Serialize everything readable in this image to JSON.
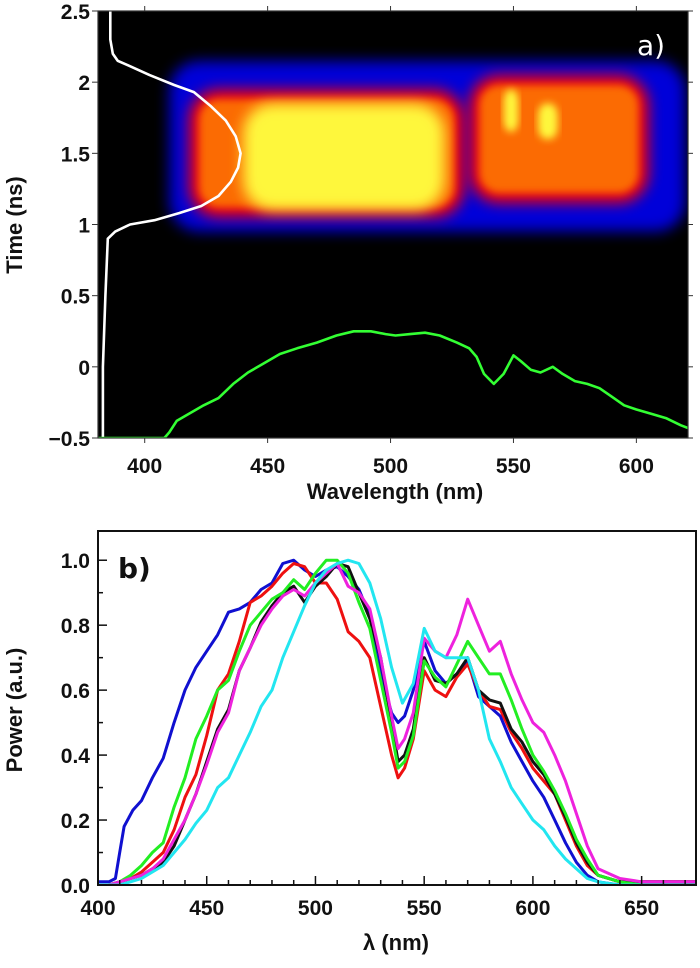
{
  "chart_data": [
    {
      "panel": "a",
      "type": "heatmap",
      "panel_label": "a)",
      "title": "",
      "xlabel": "Wavelength (nm)",
      "ylabel": "Time (ns)",
      "xlim": [
        381,
        621
      ],
      "ylim": [
        -0.5,
        2.5
      ],
      "xticks": [
        400,
        450,
        500,
        550,
        600
      ],
      "yticks": [
        -0.5,
        0,
        0.5,
        1,
        1.5,
        2,
        2.5
      ],
      "ytick_labels": [
        "−0.5",
        "0",
        "0.5",
        "1",
        "1.5",
        "2",
        "2.5"
      ],
      "colormap": [
        "#000000",
        "#0000ff",
        "#ff0000",
        "#ff9900",
        "#ffff40",
        "#ffffcc"
      ],
      "heatmap_regions": [
        {
          "name": "blue-envelope",
          "x": [
            410,
            620
          ],
          "y": [
            0.95,
            2.15
          ],
          "level": 0.25
        },
        {
          "name": "red-main",
          "x": [
            418,
            530
          ],
          "y": [
            1.05,
            1.95
          ],
          "level": 0.5
        },
        {
          "name": "yellow-core",
          "x": [
            440,
            522
          ],
          "y": [
            1.1,
            1.85
          ],
          "level": 0.95
        },
        {
          "name": "red-side",
          "x": [
            532,
            605
          ],
          "y": [
            1.15,
            2.05
          ],
          "level": 0.55
        },
        {
          "name": "yellow-spot-1",
          "x": [
            546,
            552
          ],
          "y": [
            1.65,
            1.95
          ],
          "level": 0.8
        },
        {
          "name": "yellow-spot-2",
          "x": [
            560,
            568
          ],
          "y": [
            1.6,
            1.85
          ],
          "level": 0.75
        }
      ],
      "overlay_lines": [
        {
          "name": "temporal-profile",
          "color": "#ffffff",
          "x": [
            386,
            386,
            387,
            389,
            393,
            402,
            412,
            420,
            427,
            433,
            437,
            439,
            438,
            435,
            430,
            423,
            414,
            404,
            394,
            388,
            385,
            384,
            383,
            383
          ],
          "y": [
            2.5,
            2.3,
            2.2,
            2.15,
            2.12,
            2.05,
            1.98,
            1.93,
            1.83,
            1.73,
            1.62,
            1.5,
            1.4,
            1.3,
            1.2,
            1.13,
            1.08,
            1.03,
            1.0,
            0.95,
            0.9,
            0.5,
            0.0,
            -0.5
          ]
        },
        {
          "name": "spectrum-profile",
          "color": "#33ff33",
          "x": [
            381,
            395,
            408,
            410,
            413,
            418,
            424,
            430,
            436,
            442,
            448,
            455,
            462,
            470,
            478,
            485,
            492,
            498,
            502,
            508,
            514,
            520,
            527,
            532,
            535,
            538,
            542,
            546,
            550,
            553,
            557,
            561,
            566,
            570,
            575,
            580,
            585,
            590,
            595,
            600,
            606,
            612,
            618,
            621
          ],
          "y": [
            -0.5,
            -0.5,
            -0.5,
            -0.46,
            -0.38,
            -0.33,
            -0.27,
            -0.22,
            -0.12,
            -0.04,
            0.02,
            0.09,
            0.13,
            0.17,
            0.22,
            0.25,
            0.25,
            0.23,
            0.22,
            0.23,
            0.24,
            0.22,
            0.17,
            0.13,
            0.07,
            -0.05,
            -0.12,
            -0.05,
            0.08,
            0.04,
            -0.02,
            -0.04,
            0.0,
            -0.05,
            -0.1,
            -0.12,
            -0.15,
            -0.21,
            -0.27,
            -0.3,
            -0.33,
            -0.36,
            -0.41,
            -0.43
          ]
        }
      ]
    },
    {
      "panel": "b",
      "type": "line",
      "panel_label": "b)",
      "title": "",
      "xlabel": "λ (nm)",
      "ylabel": "Power (a.u.)",
      "xlim": [
        400,
        675
      ],
      "ylim": [
        0.0,
        1.09
      ],
      "xticks": [
        400,
        450,
        500,
        550,
        600,
        650
      ],
      "yticks": [
        0.0,
        0.2,
        0.4,
        0.6,
        0.8,
        1.0
      ],
      "ytick_labels": [
        "0.0",
        "0.2",
        "0.4",
        "0.6",
        "0.8",
        "1.0"
      ],
      "minor_xtick_step": 10,
      "minor_ytick_step": 0.1,
      "grid": false,
      "series": [
        {
          "name": "blue",
          "color": "#1010d0",
          "x": [
            400,
            405,
            408,
            410,
            412,
            416,
            420,
            425,
            430,
            435,
            440,
            445,
            450,
            455,
            460,
            465,
            470,
            475,
            480,
            485,
            490,
            495,
            500,
            505,
            510,
            515,
            520,
            525,
            530,
            535,
            538,
            541,
            545,
            550,
            555,
            560,
            565,
            570,
            575,
            580,
            585,
            590,
            595,
            600,
            605,
            610,
            615,
            620,
            625,
            630,
            640,
            650,
            675
          ],
          "y": [
            0.01,
            0.01,
            0.02,
            0.1,
            0.18,
            0.23,
            0.26,
            0.33,
            0.39,
            0.5,
            0.6,
            0.67,
            0.72,
            0.77,
            0.84,
            0.85,
            0.87,
            0.91,
            0.93,
            0.99,
            1.0,
            0.97,
            0.95,
            0.97,
            0.98,
            0.95,
            0.91,
            0.83,
            0.65,
            0.53,
            0.5,
            0.52,
            0.6,
            0.75,
            0.66,
            0.62,
            0.65,
            0.69,
            0.58,
            0.55,
            0.52,
            0.44,
            0.38,
            0.32,
            0.27,
            0.2,
            0.13,
            0.07,
            0.03,
            0.01,
            0.0,
            0.0,
            0.0
          ]
        },
        {
          "name": "red",
          "color": "#ee1010",
          "x": [
            400,
            405,
            410,
            415,
            420,
            425,
            430,
            435,
            440,
            445,
            450,
            455,
            460,
            465,
            470,
            475,
            480,
            485,
            490,
            495,
            500,
            505,
            510,
            515,
            520,
            525,
            530,
            535,
            538,
            541,
            545,
            550,
            555,
            560,
            565,
            570,
            575,
            580,
            585,
            590,
            595,
            600,
            605,
            610,
            615,
            620,
            625,
            630,
            640,
            650,
            675
          ],
          "y": [
            0.0,
            0.0,
            0.01,
            0.02,
            0.04,
            0.07,
            0.1,
            0.17,
            0.27,
            0.34,
            0.46,
            0.6,
            0.65,
            0.75,
            0.87,
            0.89,
            0.92,
            0.96,
            0.99,
            0.98,
            0.93,
            0.93,
            0.88,
            0.78,
            0.75,
            0.7,
            0.55,
            0.4,
            0.33,
            0.36,
            0.45,
            0.66,
            0.6,
            0.58,
            0.64,
            0.68,
            0.6,
            0.55,
            0.54,
            0.47,
            0.42,
            0.36,
            0.32,
            0.28,
            0.2,
            0.12,
            0.06,
            0.03,
            0.01,
            0.01,
            0.01
          ]
        },
        {
          "name": "black",
          "color": "#111111",
          "x": [
            400,
            405,
            410,
            415,
            420,
            425,
            430,
            435,
            440,
            445,
            450,
            455,
            460,
            465,
            470,
            475,
            480,
            485,
            490,
            495,
            500,
            505,
            510,
            515,
            520,
            525,
            530,
            535,
            538,
            541,
            545,
            550,
            555,
            560,
            565,
            570,
            575,
            580,
            585,
            590,
            595,
            600,
            605,
            610,
            615,
            620,
            625,
            630,
            640,
            650,
            675
          ],
          "y": [
            0.0,
            0.0,
            0.01,
            0.02,
            0.03,
            0.05,
            0.07,
            0.12,
            0.2,
            0.28,
            0.38,
            0.48,
            0.54,
            0.66,
            0.73,
            0.81,
            0.86,
            0.9,
            0.92,
            0.87,
            0.92,
            0.95,
            0.99,
            0.98,
            0.9,
            0.82,
            0.7,
            0.5,
            0.38,
            0.4,
            0.48,
            0.7,
            0.63,
            0.62,
            0.65,
            0.7,
            0.6,
            0.57,
            0.56,
            0.48,
            0.44,
            0.38,
            0.34,
            0.28,
            0.21,
            0.13,
            0.07,
            0.03,
            0.01,
            0.01,
            0.01
          ]
        },
        {
          "name": "green",
          "color": "#22ee22",
          "x": [
            400,
            405,
            410,
            415,
            420,
            425,
            430,
            435,
            440,
            445,
            450,
            455,
            460,
            465,
            470,
            475,
            480,
            485,
            490,
            495,
            500,
            505,
            510,
            515,
            520,
            525,
            530,
            535,
            538,
            541,
            545,
            550,
            555,
            560,
            565,
            570,
            575,
            580,
            585,
            590,
            595,
            600,
            605,
            610,
            615,
            620,
            625,
            630,
            640,
            650,
            675
          ],
          "y": [
            0.0,
            0.0,
            0.01,
            0.03,
            0.06,
            0.1,
            0.13,
            0.24,
            0.33,
            0.45,
            0.52,
            0.6,
            0.63,
            0.72,
            0.8,
            0.84,
            0.88,
            0.9,
            0.94,
            0.91,
            0.96,
            1.0,
            1.0,
            0.96,
            0.87,
            0.79,
            0.63,
            0.47,
            0.36,
            0.38,
            0.46,
            0.69,
            0.64,
            0.61,
            0.68,
            0.75,
            0.7,
            0.65,
            0.65,
            0.57,
            0.48,
            0.4,
            0.35,
            0.29,
            0.22,
            0.14,
            0.08,
            0.03,
            0.01,
            0.0,
            0.0
          ]
        },
        {
          "name": "magenta",
          "color": "#ee22dd",
          "x": [
            400,
            405,
            410,
            415,
            420,
            425,
            430,
            435,
            440,
            445,
            450,
            455,
            460,
            465,
            470,
            475,
            480,
            485,
            490,
            495,
            500,
            505,
            510,
            515,
            520,
            525,
            530,
            535,
            538,
            541,
            545,
            550,
            555,
            560,
            565,
            570,
            575,
            580,
            585,
            590,
            595,
            600,
            605,
            610,
            615,
            620,
            625,
            630,
            640,
            650,
            675
          ],
          "y": [
            0.0,
            0.0,
            0.01,
            0.02,
            0.03,
            0.05,
            0.08,
            0.14,
            0.2,
            0.28,
            0.37,
            0.47,
            0.53,
            0.66,
            0.73,
            0.8,
            0.85,
            0.89,
            0.91,
            0.89,
            0.93,
            0.96,
            0.99,
            0.92,
            0.9,
            0.85,
            0.7,
            0.52,
            0.42,
            0.45,
            0.53,
            0.76,
            0.72,
            0.7,
            0.77,
            0.88,
            0.8,
            0.72,
            0.75,
            0.65,
            0.57,
            0.5,
            0.47,
            0.4,
            0.32,
            0.22,
            0.12,
            0.05,
            0.02,
            0.01,
            0.01
          ]
        },
        {
          "name": "cyan",
          "color": "#22e6f0",
          "x": [
            400,
            405,
            410,
            415,
            420,
            425,
            430,
            435,
            440,
            445,
            450,
            455,
            460,
            465,
            470,
            475,
            480,
            485,
            490,
            495,
            500,
            505,
            510,
            515,
            520,
            525,
            530,
            535,
            540,
            545,
            550,
            555,
            560,
            565,
            570,
            575,
            580,
            585,
            590,
            595,
            600,
            605,
            610,
            615,
            620,
            625,
            630,
            640,
            650,
            675
          ],
          "y": [
            0.0,
            0.0,
            0.0,
            0.01,
            0.02,
            0.04,
            0.06,
            0.1,
            0.14,
            0.19,
            0.23,
            0.3,
            0.33,
            0.4,
            0.47,
            0.55,
            0.6,
            0.7,
            0.78,
            0.86,
            0.93,
            0.97,
            0.99,
            1.0,
            0.99,
            0.93,
            0.82,
            0.67,
            0.56,
            0.62,
            0.79,
            0.72,
            0.7,
            0.7,
            0.7,
            0.6,
            0.45,
            0.38,
            0.3,
            0.25,
            0.2,
            0.17,
            0.12,
            0.08,
            0.05,
            0.02,
            0.01,
            0.0,
            0.0,
            0.0
          ]
        }
      ]
    }
  ]
}
